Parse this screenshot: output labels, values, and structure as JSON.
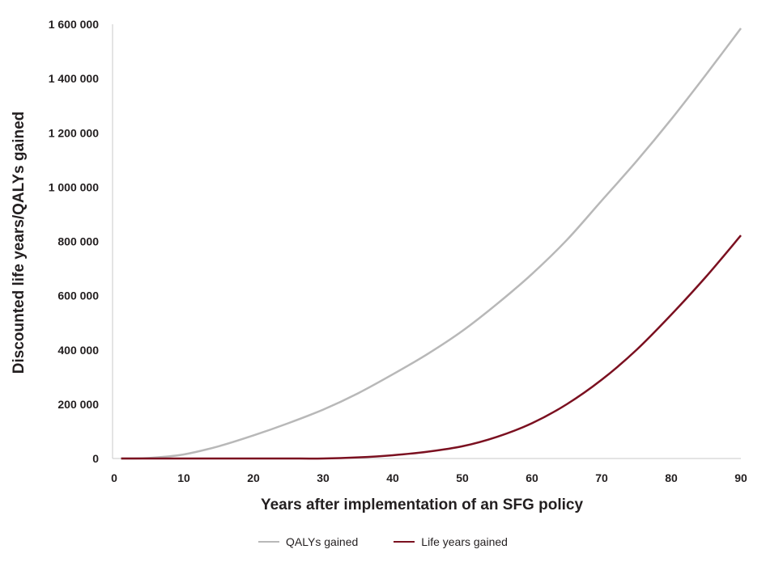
{
  "chart_data": {
    "type": "line",
    "title": "",
    "xlabel": "Years after implementation of an SFG policy",
    "ylabel": "Discounted life years/QALYs gained",
    "xlim": [
      0,
      90
    ],
    "ylim": [
      0,
      1600000
    ],
    "x_ticks": [
      0,
      10,
      20,
      30,
      40,
      50,
      60,
      70,
      80,
      90
    ],
    "y_ticks": [
      0,
      200000,
      400000,
      600000,
      800000,
      1000000,
      1200000,
      1400000,
      1600000
    ],
    "y_tick_labels": [
      "0",
      "200 000",
      "400 000",
      "600 000",
      "800 000",
      "1 000 000",
      "1 200 000",
      "1 400 000",
      "1 600 000"
    ],
    "grid": false,
    "legend_position": "bottom",
    "x": [
      1,
      5,
      10,
      15,
      20,
      25,
      30,
      35,
      40,
      45,
      50,
      55,
      60,
      65,
      70,
      75,
      80,
      85,
      90
    ],
    "series": [
      {
        "name": "QALYs gained",
        "color": "#b8b8b8",
        "values": [
          0,
          2000,
          15000,
          45000,
          85000,
          130000,
          180000,
          240000,
          310000,
          385000,
          470000,
          570000,
          680000,
          805000,
          950000,
          1095000,
          1250000,
          1415000,
          1585000
        ]
      },
      {
        "name": "Life years gained",
        "color": "#7b1020",
        "values": [
          0,
          0,
          0,
          0,
          0,
          0,
          0,
          4000,
          12000,
          25000,
          45000,
          80000,
          130000,
          200000,
          290000,
          400000,
          530000,
          670000,
          822000
        ]
      }
    ]
  }
}
